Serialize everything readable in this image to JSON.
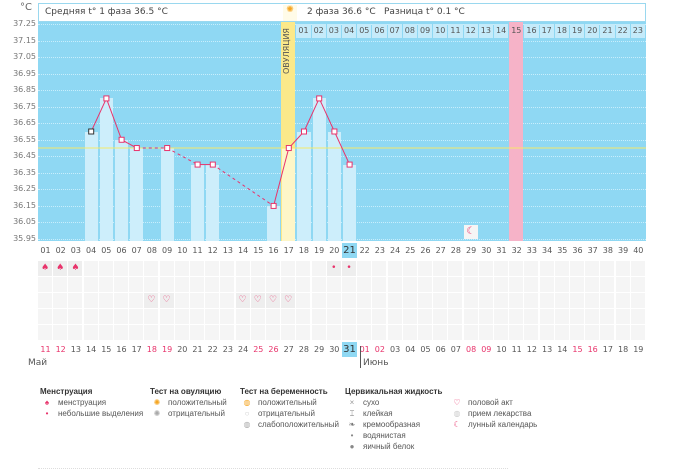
{
  "header": {
    "unit": "°C",
    "phase1": "Средняя t° 1 фаза 36.5 °C",
    "phase2": "2 фаза 36.6 °C",
    "diff": "Разница t° 0.1 °C",
    "ovulation": "ОВУЛЯЦИЯ"
  },
  "chart_data": {
    "type": "line",
    "title": "",
    "xlabel": "",
    "ylabel": "°C",
    "ylim": [
      35.95,
      37.25
    ],
    "yticks": [
      "37.25",
      "37.15",
      "37.05",
      "36.95",
      "36.85",
      "36.75",
      "36.65",
      "36.55",
      "36.45",
      "36.35",
      "36.25",
      "36.15",
      "36.05",
      "35.95"
    ],
    "coverline": 36.5,
    "ovulation_day": 17,
    "points": [
      [
        4,
        36.6
      ],
      [
        5,
        36.8
      ],
      [
        6,
        36.55
      ],
      [
        7,
        36.5
      ],
      [
        9,
        36.5
      ],
      [
        11,
        36.4
      ],
      [
        12,
        36.4
      ],
      [
        16,
        36.15
      ],
      [
        17,
        36.5
      ],
      [
        18,
        36.6
      ],
      [
        19,
        36.8
      ],
      [
        20,
        36.6
      ],
      [
        21,
        36.4
      ]
    ],
    "cycle_days": [
      "01",
      "02",
      "03",
      "04",
      "05",
      "06",
      "07",
      "08",
      "09",
      "10",
      "11",
      "12",
      "13",
      "14",
      "15",
      "16",
      "17",
      "18",
      "19",
      "20",
      "21",
      "22",
      "23",
      "24",
      "25",
      "26",
      "27",
      "28",
      "29",
      "30",
      "31",
      "32",
      "33",
      "34",
      "35",
      "36",
      "37",
      "38",
      "39",
      "40"
    ],
    "phase2_days": [
      "01",
      "02",
      "03",
      "04",
      "05",
      "06",
      "07",
      "08",
      "09",
      "10",
      "11",
      "12",
      "13",
      "14",
      "15",
      "16",
      "17",
      "18",
      "19",
      "20",
      "21",
      "22",
      "23"
    ],
    "highlight_phase2_day": "15",
    "current_day": "21",
    "moon_day": 29
  },
  "dates": [
    "11",
    "12",
    "13",
    "14",
    "15",
    "16",
    "17",
    "18",
    "19",
    "20",
    "21",
    "22",
    "23",
    "24",
    "25",
    "26",
    "27",
    "28",
    "29",
    "30",
    "31",
    "01",
    "02",
    "03",
    "04",
    "05",
    "06",
    "07",
    "08",
    "09",
    "10",
    "11",
    "12",
    "13",
    "14",
    "15",
    "16",
    "17",
    "18",
    "19"
  ],
  "weekend_dates_idx": [
    0,
    1,
    7,
    8,
    14,
    15,
    21,
    22,
    28,
    29,
    35,
    36
  ],
  "months": [
    "Май",
    "Июнь"
  ],
  "marks": {
    "menstruation": [
      1,
      2,
      3
    ],
    "spotting": [
      20,
      21
    ],
    "intercourse": [
      8,
      9,
      14,
      15,
      16,
      17
    ]
  },
  "legend": {
    "menstruation": {
      "title": "Менструация",
      "items": [
        "менструация",
        "небольшие выделения"
      ]
    },
    "ovulation_test": {
      "title": "Тест на овуляцию",
      "items": [
        "положительный",
        "отрицательный"
      ]
    },
    "pregnancy_test": {
      "title": "Тест на беременность",
      "items": [
        "положительный",
        "отрицательный",
        "слабоположительный"
      ]
    },
    "cervical": {
      "title": "Цервикальная жидкость",
      "items": [
        "сухо",
        "клейкая",
        "кремообразная",
        "водянистая",
        "яичный белок"
      ]
    },
    "other": {
      "items": [
        "половой акт",
        "прием лекарства",
        "лунный календарь"
      ]
    }
  },
  "colors": {
    "accent": "#e8336b",
    "plot": "#8fd8f3",
    "bar": "#cdeefb",
    "ovulation": "#fbe98a",
    "highlight": "#f6b3c8"
  }
}
